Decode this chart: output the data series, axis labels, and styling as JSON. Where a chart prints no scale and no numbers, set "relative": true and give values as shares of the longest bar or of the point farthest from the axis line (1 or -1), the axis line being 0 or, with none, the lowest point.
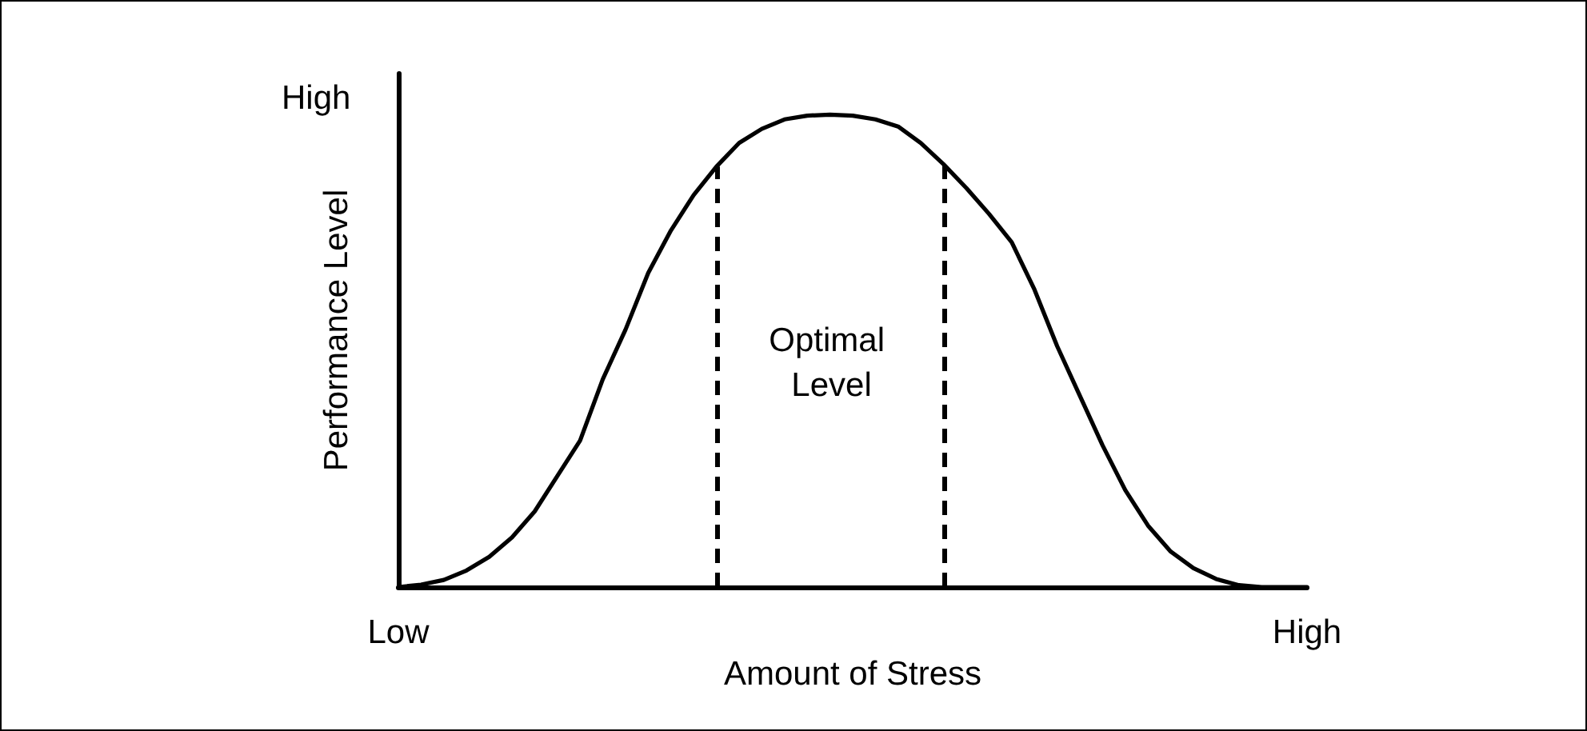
{
  "chart_data": {
    "type": "line",
    "relative": true,
    "xlabel": "Amount of Stress",
    "ylabel": "Performance Level",
    "categories": [
      "Low",
      null,
      null,
      null,
      null,
      null,
      null,
      null,
      null,
      null,
      null,
      null,
      null,
      null,
      null,
      null,
      null,
      null,
      null,
      null,
      null,
      null,
      null,
      null,
      null,
      null,
      null,
      null,
      null,
      null,
      null,
      null,
      null,
      null,
      null,
      null,
      null,
      null,
      null,
      null,
      "High"
    ],
    "series": [
      {
        "color": "#000000",
        "values": [
          0,
          0.005,
          0.015,
          0.035,
          0.064,
          0.105,
          0.16,
          0.235,
          0.31,
          0.44,
          0.545,
          0.665,
          0.755,
          0.83,
          0.89,
          0.94,
          0.97,
          0.99,
          0.998,
          1,
          0.998,
          0.99,
          0.975,
          0.94,
          0.895,
          0.845,
          0.79,
          0.73,
          0.63,
          0.51,
          0.405,
          0.3,
          0.205,
          0.13,
          0.075,
          0.04,
          0.017,
          0.004,
          0,
          0,
          0
        ]
      }
    ],
    "annotations": [
      "High",
      "Optimal Level"
    ],
    "marker": "none",
    "line_style": "solid"
  }
}
